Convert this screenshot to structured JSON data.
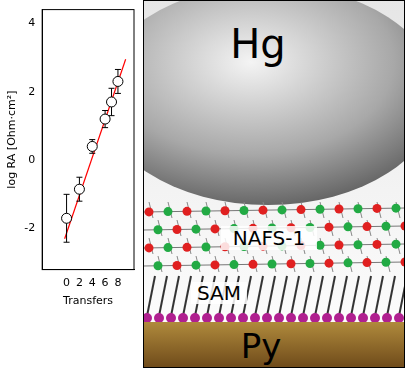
{
  "chart_data": {
    "type": "scatter",
    "x_label": "Transfers",
    "y_label": "log RA [Ohm·cm²]",
    "x": [
      0,
      2,
      4,
      6,
      7,
      8
    ],
    "values": [
      -1.7,
      -0.85,
      0.4,
      1.2,
      1.7,
      2.3
    ],
    "errors": [
      0.7,
      0.35,
      0.2,
      0.25,
      0.4,
      0.35
    ],
    "color": "#000000",
    "marker": "circle",
    "fit": {
      "x": [
        -0.3,
        9.2
      ],
      "values": [
        -2.3,
        2.95
      ],
      "color": "#ff0000"
    },
    "xlim": [
      -3.8,
      10.5
    ],
    "xticks": [
      0,
      2,
      4,
      6,
      8
    ],
    "ylim": [
      -3.2,
      4.4
    ],
    "yticks": [
      -2,
      0,
      2,
      4
    ],
    "grid": false
  },
  "diagram": {
    "labels": [
      "Hg",
      "NAFS-1",
      "SAM",
      "Py"
    ]
  }
}
